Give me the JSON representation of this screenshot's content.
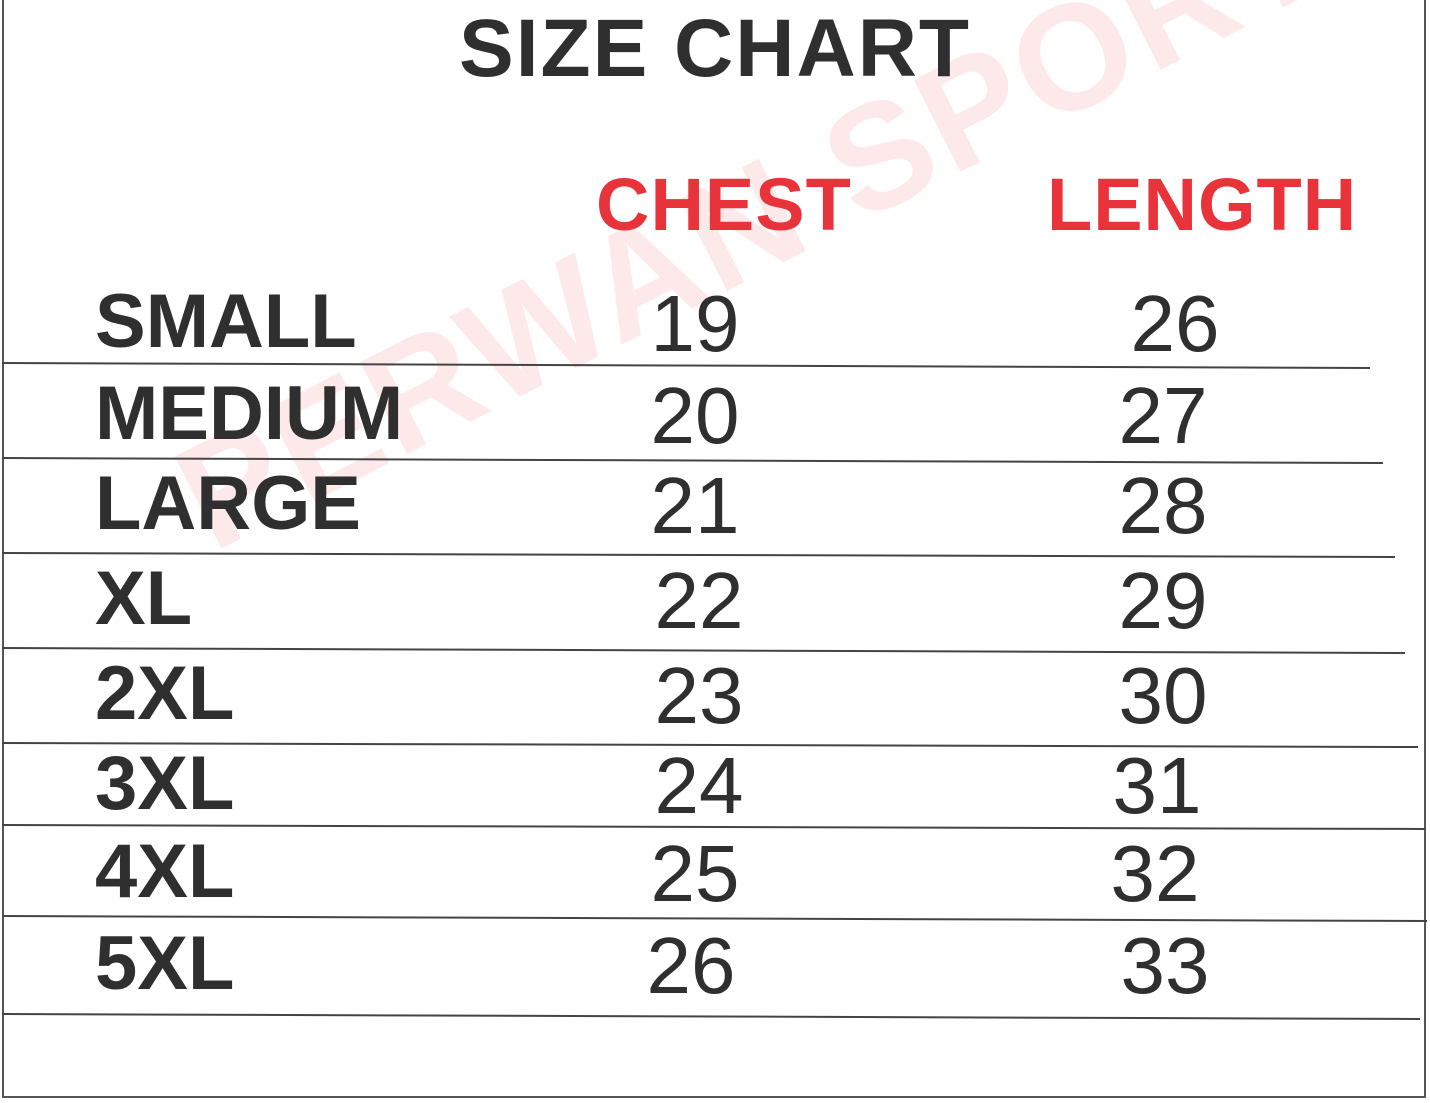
{
  "title": "SIZE CHART",
  "watermark": "PERWAN SPORTS",
  "columns": {
    "chest": "CHEST",
    "length": "LENGTH"
  },
  "colors": {
    "header": "#e8333a",
    "text": "#2f2f2f",
    "watermark": "#f0505a"
  },
  "rows": [
    {
      "size": "SMALL",
      "chest": "19",
      "length": "26"
    },
    {
      "size": "MEDIUM",
      "chest": "20",
      "length": "27"
    },
    {
      "size": "LARGE",
      "chest": "21",
      "length": "28"
    },
    {
      "size": "XL",
      "chest": "22",
      "length": "29"
    },
    {
      "size": "2XL",
      "chest": "23",
      "length": "30"
    },
    {
      "size": "3XL",
      "chest": "24",
      "length": "31"
    },
    {
      "size": "4XL",
      "chest": "25",
      "length": "32"
    },
    {
      "size": "5XL",
      "chest": "26",
      "length": "33"
    }
  ]
}
